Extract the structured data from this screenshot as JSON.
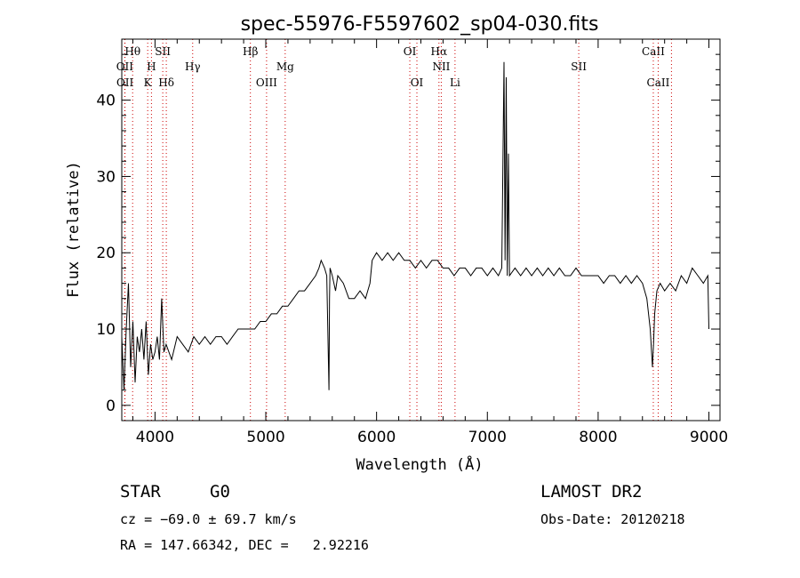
{
  "chart_data": {
    "type": "line",
    "title": "spec-55976-F5597602_sp04-030.fits",
    "xlabel": "Wavelength (Å)",
    "ylabel": "Flux (relative)",
    "xlim": [
      3700,
      9100
    ],
    "ylim": [
      -2,
      48
    ],
    "xticks": [
      4000,
      5000,
      6000,
      7000,
      8000,
      9000
    ],
    "yticks": [
      0,
      10,
      20,
      30,
      40
    ],
    "grid": false,
    "series": [
      {
        "x": [
          3700,
          3720,
          3740,
          3760,
          3780,
          3800,
          3820,
          3840,
          3860,
          3880,
          3900,
          3920,
          3940,
          3960,
          3980,
          4000,
          4020,
          4040,
          4060,
          4080,
          4100,
          4150,
          4200,
          4250,
          4300,
          4350,
          4400,
          4450,
          4500,
          4550,
          4600,
          4650,
          4700,
          4750,
          4800,
          4850,
          4900,
          4950,
          5000,
          5050,
          5100,
          5150,
          5200,
          5250,
          5300,
          5350,
          5400,
          5450,
          5480,
          5500,
          5530,
          5550,
          5570,
          5575,
          5580,
          5600,
          5630,
          5650,
          5700,
          5750,
          5800,
          5850,
          5900,
          5920,
          5940,
          5960,
          6000,
          6050,
          6100,
          6150,
          6200,
          6250,
          6300,
          6350,
          6400,
          6450,
          6500,
          6550,
          6600,
          6650,
          6700,
          6750,
          6800,
          6850,
          6900,
          6950,
          7000,
          7050,
          7100,
          7130,
          7150,
          7160,
          7170,
          7180,
          7190,
          7200,
          7250,
          7300,
          7350,
          7400,
          7450,
          7500,
          7550,
          7600,
          7650,
          7700,
          7750,
          7800,
          7850,
          7900,
          7950,
          8000,
          8050,
          8100,
          8150,
          8200,
          8250,
          8300,
          8350,
          8400,
          8440,
          8470,
          8490,
          8500,
          8510,
          8530,
          8560,
          8600,
          8650,
          8700,
          8750,
          8800,
          8850,
          8900,
          8950,
          8990,
          9000
        ],
        "y": [
          9,
          2,
          10,
          16,
          5,
          11,
          3,
          9,
          7,
          10,
          6,
          11,
          4,
          8,
          6,
          7,
          9,
          6,
          14,
          7,
          8,
          6,
          9,
          8,
          7,
          9,
          8,
          9,
          8,
          9,
          9,
          8,
          9,
          10,
          10,
          10,
          10,
          11,
          11,
          12,
          12,
          13,
          13,
          14,
          15,
          15,
          16,
          17,
          18,
          19,
          18,
          17,
          2,
          14,
          18,
          17,
          15,
          17,
          16,
          14,
          14,
          15,
          14,
          15,
          16,
          19,
          20,
          19,
          20,
          19,
          20,
          19,
          19,
          18,
          19,
          18,
          19,
          19,
          18,
          18,
          17,
          18,
          18,
          17,
          18,
          18,
          17,
          18,
          17,
          18,
          45,
          19,
          43,
          17,
          33,
          17,
          18,
          17,
          18,
          17,
          18,
          17,
          18,
          17,
          18,
          17,
          17,
          18,
          17,
          17,
          17,
          17,
          16,
          17,
          17,
          16,
          17,
          16,
          17,
          16,
          14,
          10,
          5,
          8,
          12,
          15,
          16,
          15,
          16,
          15,
          17,
          16,
          18,
          17,
          16,
          17,
          10
        ]
      }
    ],
    "lines": [
      {
        "name": "Hθ",
        "x": 3798,
        "row": 1
      },
      {
        "name": "OII",
        "x": 3727,
        "row": 2
      },
      {
        "name": "OII",
        "x": 3729,
        "row": 3
      },
      {
        "name": "SII",
        "x": 4070,
        "row": 1
      },
      {
        "name": "H",
        "x": 3968,
        "row": 2
      },
      {
        "name": "K",
        "x": 3934,
        "row": 3
      },
      {
        "name": "Hδ",
        "x": 4102,
        "row": 3
      },
      {
        "name": "Hγ",
        "x": 4340,
        "row": 2
      },
      {
        "name": "Hβ",
        "x": 4861,
        "row": 1
      },
      {
        "name": "OIII",
        "x": 5007,
        "row": 3
      },
      {
        "name": "Mg",
        "x": 5175,
        "row": 2
      },
      {
        "name": "OI",
        "x": 6300,
        "row": 1
      },
      {
        "name": "OI",
        "x": 6364,
        "row": 3
      },
      {
        "name": "Hα",
        "x": 6563,
        "row": 1
      },
      {
        "name": "NII",
        "x": 6584,
        "row": 2
      },
      {
        "name": "Li",
        "x": 6708,
        "row": 3
      },
      {
        "name": "SII",
        "x": 7825,
        "row": 2
      },
      {
        "name": "CaII",
        "x": 8498,
        "row": 1
      },
      {
        "name": "CaII",
        "x": 8542,
        "row": 3
      },
      {
        "name": "",
        "x": 8662,
        "row": 0
      }
    ],
    "colors": {
      "spectrum": "#000000",
      "line_markers": "#cc0000"
    }
  },
  "info": {
    "object_type": "STAR",
    "subclass": "G0",
    "survey": "LAMOST DR2",
    "redshift": "cz = −69.0 ± 69.7 km/s",
    "obs_date": "Obs-Date: 20120218",
    "coords": "RA = 147.66342, DEC =   2.92216"
  }
}
